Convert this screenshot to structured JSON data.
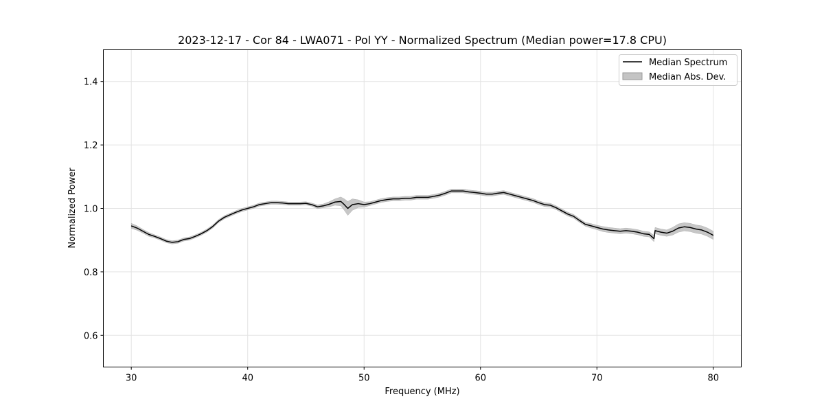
{
  "chart_data": {
    "type": "line",
    "title": "2023-12-17 - Cor 84 - LWA071 - Pol YY - Normalized Spectrum (Median power=17.8 CPU)",
    "xlabel": "Frequency (MHz)",
    "ylabel": "Normalized Power",
    "xlim": [
      27.6,
      82.4
    ],
    "ylim": [
      0.5,
      1.5
    ],
    "xticks": [
      30,
      40,
      50,
      60,
      70,
      80
    ],
    "yticks": [
      0.6,
      0.8,
      1.0,
      1.2,
      1.4
    ],
    "xtick_labels": [
      "30",
      "40",
      "50",
      "60",
      "70",
      "80"
    ],
    "ytick_labels": [
      "0.6",
      "0.8",
      "1.0",
      "1.2",
      "1.4"
    ],
    "grid": true,
    "legend": {
      "position": "top-right",
      "entries": [
        {
          "label": "Median Spectrum",
          "kind": "line",
          "color": "#000000"
        },
        {
          "label": "Median Abs. Dev.",
          "kind": "band",
          "color": "#c4c4c4"
        }
      ]
    },
    "series": [
      {
        "name": "Median Spectrum",
        "color": "#000000",
        "band_color": "#c4c4c4",
        "x": [
          30.0,
          30.5,
          31.0,
          31.5,
          32.0,
          32.5,
          33.0,
          33.5,
          34.0,
          34.5,
          35.0,
          35.5,
          36.0,
          36.5,
          37.0,
          37.5,
          38.0,
          38.5,
          39.0,
          39.5,
          40.0,
          40.5,
          41.0,
          41.5,
          42.0,
          42.5,
          43.0,
          43.5,
          44.0,
          44.5,
          45.0,
          45.5,
          46.0,
          46.5,
          47.0,
          47.5,
          48.0,
          48.3,
          48.6,
          49.0,
          49.5,
          50.0,
          50.5,
          51.0,
          51.5,
          52.0,
          52.5,
          53.0,
          53.5,
          54.0,
          54.5,
          55.0,
          55.5,
          56.0,
          56.5,
          57.0,
          57.5,
          58.0,
          58.5,
          59.0,
          59.5,
          60.0,
          60.5,
          61.0,
          61.5,
          62.0,
          62.5,
          63.0,
          63.5,
          64.0,
          64.5,
          65.0,
          65.5,
          66.0,
          66.5,
          67.0,
          67.5,
          68.0,
          68.5,
          69.0,
          69.5,
          70.0,
          70.5,
          71.0,
          71.5,
          72.0,
          72.5,
          73.0,
          73.5,
          74.0,
          74.5,
          74.9,
          75.0,
          75.5,
          76.0,
          76.5,
          77.0,
          77.5,
          78.0,
          78.5,
          79.0,
          79.5,
          80.0
        ],
        "values": [
          0.945,
          0.938,
          0.928,
          0.918,
          0.912,
          0.905,
          0.897,
          0.893,
          0.895,
          0.902,
          0.905,
          0.912,
          0.92,
          0.93,
          0.943,
          0.96,
          0.972,
          0.98,
          0.988,
          0.995,
          1.0,
          1.005,
          1.012,
          1.015,
          1.018,
          1.018,
          1.017,
          1.015,
          1.015,
          1.015,
          1.016,
          1.012,
          1.005,
          1.008,
          1.013,
          1.02,
          1.022,
          1.012,
          1.0,
          1.012,
          1.015,
          1.012,
          1.015,
          1.02,
          1.025,
          1.028,
          1.03,
          1.03,
          1.032,
          1.032,
          1.035,
          1.035,
          1.035,
          1.038,
          1.042,
          1.048,
          1.055,
          1.055,
          1.055,
          1.052,
          1.05,
          1.048,
          1.045,
          1.045,
          1.048,
          1.05,
          1.045,
          1.04,
          1.035,
          1.03,
          1.025,
          1.018,
          1.012,
          1.01,
          1.002,
          0.992,
          0.982,
          0.975,
          0.962,
          0.95,
          0.945,
          0.94,
          0.935,
          0.932,
          0.93,
          0.928,
          0.93,
          0.928,
          0.925,
          0.92,
          0.918,
          0.905,
          0.93,
          0.925,
          0.922,
          0.928,
          0.938,
          0.942,
          0.94,
          0.935,
          0.932,
          0.925,
          0.915
        ],
        "mad": [
          0.008,
          0.007,
          0.006,
          0.006,
          0.005,
          0.005,
          0.005,
          0.005,
          0.005,
          0.005,
          0.005,
          0.005,
          0.005,
          0.005,
          0.005,
          0.005,
          0.005,
          0.005,
          0.005,
          0.005,
          0.005,
          0.005,
          0.005,
          0.005,
          0.005,
          0.005,
          0.005,
          0.005,
          0.005,
          0.005,
          0.005,
          0.005,
          0.006,
          0.006,
          0.008,
          0.01,
          0.014,
          0.018,
          0.022,
          0.018,
          0.012,
          0.008,
          0.006,
          0.006,
          0.006,
          0.006,
          0.006,
          0.006,
          0.006,
          0.006,
          0.006,
          0.006,
          0.006,
          0.006,
          0.006,
          0.006,
          0.006,
          0.006,
          0.006,
          0.006,
          0.006,
          0.006,
          0.006,
          0.006,
          0.006,
          0.006,
          0.006,
          0.006,
          0.006,
          0.006,
          0.006,
          0.006,
          0.006,
          0.006,
          0.006,
          0.006,
          0.006,
          0.006,
          0.006,
          0.006,
          0.007,
          0.007,
          0.008,
          0.008,
          0.008,
          0.008,
          0.008,
          0.008,
          0.008,
          0.008,
          0.008,
          0.01,
          0.01,
          0.01,
          0.01,
          0.012,
          0.013,
          0.013,
          0.013,
          0.013,
          0.013,
          0.013,
          0.013
        ]
      }
    ]
  }
}
